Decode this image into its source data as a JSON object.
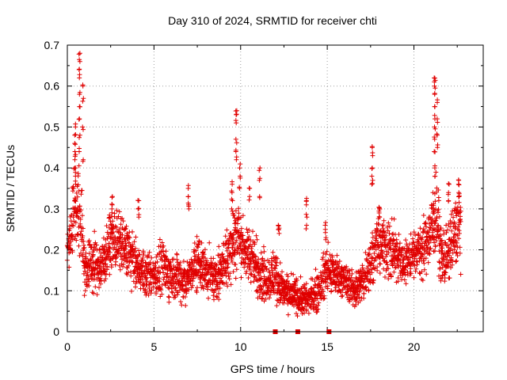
{
  "chart_data": {
    "type": "scatter",
    "title": "Day 310 of 2024, SRMTID for receiver chti",
    "xlabel": "GPS time / hours",
    "ylabel": "SRMTID / TECUs",
    "xlim": [
      0,
      24
    ],
    "ylim": [
      0,
      0.7
    ],
    "x_ticks": [
      "0",
      "5",
      "10",
      "15",
      "20"
    ],
    "y_ticks": [
      "0",
      "0.1",
      "0.2",
      "0.3",
      "0.4",
      "0.5",
      "0.6",
      "0.7"
    ],
    "grid": true,
    "marker": "+",
    "color": "#e00000",
    "series": [
      {
        "name": "SRMTID",
        "profile_x": [
          0,
          0.3,
          0.5,
          0.8,
          1.0,
          1.5,
          2.0,
          2.5,
          3.0,
          3.5,
          4.0,
          4.5,
          5.0,
          5.5,
          6.0,
          6.5,
          7.0,
          7.5,
          8.0,
          8.5,
          9.0,
          9.5,
          9.8,
          10.2,
          10.5,
          11.0,
          11.5,
          12.0,
          12.5,
          13.0,
          13.5,
          14.0,
          14.5,
          15.0,
          15.5,
          16.0,
          16.5,
          17.0,
          17.5,
          18.0,
          18.5,
          19.0,
          19.5,
          20.0,
          20.5,
          21.0,
          21.3,
          21.6,
          22.0,
          22.3,
          22.7
        ],
        "profile_median": [
          0.19,
          0.28,
          0.3,
          0.27,
          0.16,
          0.17,
          0.16,
          0.23,
          0.22,
          0.2,
          0.16,
          0.14,
          0.14,
          0.15,
          0.14,
          0.13,
          0.13,
          0.17,
          0.15,
          0.13,
          0.16,
          0.22,
          0.24,
          0.2,
          0.19,
          0.15,
          0.13,
          0.14,
          0.1,
          0.09,
          0.08,
          0.08,
          0.1,
          0.15,
          0.14,
          0.13,
          0.1,
          0.12,
          0.17,
          0.22,
          0.2,
          0.18,
          0.17,
          0.19,
          0.2,
          0.25,
          0.3,
          0.18,
          0.19,
          0.24,
          0.27
        ],
        "profile_spread": [
          0.03,
          0.08,
          0.08,
          0.07,
          0.05,
          0.05,
          0.05,
          0.05,
          0.05,
          0.05,
          0.04,
          0.04,
          0.04,
          0.05,
          0.04,
          0.04,
          0.04,
          0.05,
          0.04,
          0.04,
          0.05,
          0.07,
          0.07,
          0.05,
          0.05,
          0.05,
          0.04,
          0.05,
          0.03,
          0.03,
          0.03,
          0.03,
          0.04,
          0.04,
          0.04,
          0.03,
          0.03,
          0.04,
          0.05,
          0.05,
          0.05,
          0.05,
          0.04,
          0.04,
          0.05,
          0.06,
          0.08,
          0.05,
          0.05,
          0.06,
          0.07
        ],
        "spikes": [
          {
            "x": 0.45,
            "values": [
              0.5,
              0.48,
              0.46,
              0.44,
              0.42,
              0.4,
              0.38,
              0.36
            ]
          },
          {
            "x": 0.7,
            "values": [
              0.68,
              0.66,
              0.64,
              0.62,
              0.58,
              0.55,
              0.52,
              0.48,
              0.44
            ]
          },
          {
            "x": 0.9,
            "values": [
              0.6,
              0.57,
              0.5,
              0.42
            ]
          },
          {
            "x": 2.6,
            "values": [
              0.33,
              0.31,
              0.3
            ]
          },
          {
            "x": 4.1,
            "values": [
              0.32,
              0.3,
              0.28
            ]
          },
          {
            "x": 7.0,
            "values": [
              0.35,
              0.33,
              0.31,
              0.3
            ]
          },
          {
            "x": 9.5,
            "values": [
              0.36,
              0.34,
              0.32,
              0.3
            ]
          },
          {
            "x": 9.75,
            "values": [
              0.54,
              0.53,
              0.51,
              0.47,
              0.44,
              0.42
            ]
          },
          {
            "x": 9.95,
            "values": [
              0.4,
              0.38,
              0.35
            ]
          },
          {
            "x": 10.5,
            "values": [
              0.35,
              0.33
            ]
          },
          {
            "x": 11.1,
            "values": [
              0.4,
              0.37,
              0.33
            ]
          },
          {
            "x": 12.2,
            "values": [
              0.26,
              0.25,
              0.24
            ]
          },
          {
            "x": 13.8,
            "values": [
              0.32,
              0.31,
              0.28,
              0.26
            ]
          },
          {
            "x": 14.9,
            "values": [
              0.26,
              0.25,
              0.23
            ]
          },
          {
            "x": 17.6,
            "values": [
              0.45,
              0.43,
              0.4,
              0.38,
              0.36
            ]
          },
          {
            "x": 18.0,
            "values": [
              0.3,
              0.29,
              0.28
            ]
          },
          {
            "x": 21.2,
            "values": [
              0.62,
              0.61,
              0.6,
              0.58,
              0.55,
              0.52,
              0.5,
              0.47,
              0.44,
              0.4,
              0.38
            ]
          },
          {
            "x": 21.35,
            "values": [
              0.56,
              0.52,
              0.48,
              0.45
            ]
          },
          {
            "x": 22.0,
            "values": [
              0.36,
              0.34,
              0.32
            ]
          },
          {
            "x": 22.6,
            "values": [
              0.37,
              0.36,
              0.34,
              0.33
            ]
          }
        ],
        "zero_points": [
          12.0,
          13.3,
          15.1
        ]
      }
    ]
  }
}
